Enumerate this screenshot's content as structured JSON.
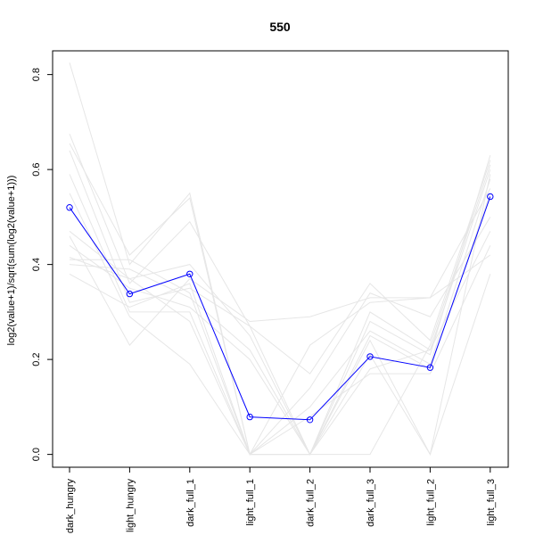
{
  "chart_data": {
    "type": "line",
    "title": "550",
    "xlabel": "",
    "ylabel": "log2(value+1)/sqrt(sum(log2(value+1)))",
    "categories": [
      "dark_hungry",
      "light_hungry",
      "dark_full_1",
      "light_full_1",
      "dark_full_2",
      "dark_full_3",
      "light_full_2",
      "light_full_3"
    ],
    "ylim": [
      -0.027,
      0.85
    ],
    "yticks": [
      0.0,
      0.2,
      0.4,
      0.6,
      0.8
    ],
    "ytick_labels": [
      "0.0",
      "0.2",
      "0.4",
      "0.6",
      "0.8"
    ],
    "grid": false,
    "highlight_color": "#0000ff",
    "background_color": "#e6e6e6",
    "highlight": {
      "values": [
        0.52,
        0.338,
        0.38,
        0.079,
        0.073,
        0.206,
        0.183,
        0.543
      ]
    },
    "background_series": [
      {
        "values": [
          0.825,
          0.4,
          0.55,
          0.0,
          0.0,
          0.3,
          0.22,
          0.6
        ]
      },
      {
        "values": [
          0.675,
          0.36,
          0.49,
          0.27,
          0.17,
          0.36,
          0.24,
          0.62
        ]
      },
      {
        "values": [
          0.655,
          0.42,
          0.54,
          0.0,
          0.23,
          0.32,
          0.33,
          0.56
        ]
      },
      {
        "values": [
          0.64,
          0.32,
          0.35,
          0.27,
          0.0,
          0.25,
          0.18,
          0.55
        ]
      },
      {
        "values": [
          0.59,
          0.3,
          0.3,
          0.0,
          0.14,
          0.34,
          0.29,
          0.5
        ]
      },
      {
        "values": [
          0.55,
          0.29,
          0.19,
          0.0,
          0.0,
          0.28,
          0.21,
          0.63
        ]
      },
      {
        "values": [
          0.46,
          0.23,
          0.37,
          0.28,
          0.29,
          0.33,
          0.33,
          0.42
        ]
      },
      {
        "values": [
          0.44,
          0.35,
          0.31,
          0.2,
          0.0,
          0.18,
          0.22,
          0.47
        ]
      },
      {
        "values": [
          0.415,
          0.37,
          0.28,
          0.0,
          0.1,
          0.26,
          0.19,
          0.58
        ]
      },
      {
        "values": [
          0.4,
          0.39,
          0.33,
          0.22,
          0.0,
          0.21,
          0.0,
          0.38
        ]
      },
      {
        "values": [
          0.38,
          0.31,
          0.36,
          0.0,
          0.08,
          0.17,
          0.17,
          0.44
        ]
      },
      {
        "values": [
          0.41,
          0.41,
          0.34,
          0.0,
          0.0,
          0.0,
          0.23,
          0.61
        ]
      },
      {
        "values": [
          0.47,
          0.37,
          0.4,
          0.25,
          0.0,
          0.24,
          0.0,
          0.59
        ]
      }
    ]
  }
}
